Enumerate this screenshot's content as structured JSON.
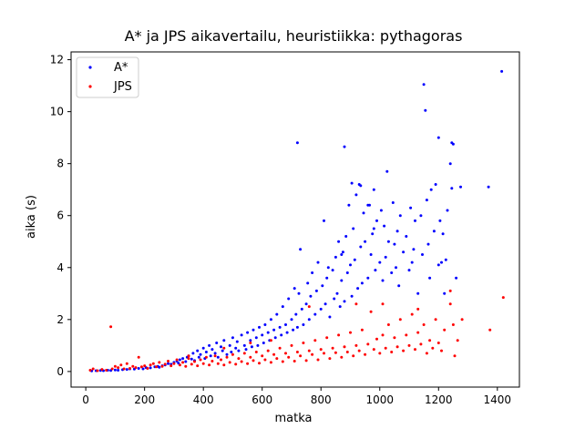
{
  "chart_data": {
    "type": "scatter",
    "title": "A* ja JPS aikavertailu, heuristiikka: pythagoras",
    "xlabel": "matka",
    "ylabel": "aika (s)",
    "xlim": [
      -50,
      1475
    ],
    "ylim": [
      -0.6,
      12.3
    ],
    "xticks": [
      0,
      200,
      400,
      600,
      800,
      1000,
      1200,
      1400
    ],
    "yticks": [
      0,
      2,
      4,
      6,
      8,
      10,
      12
    ],
    "grid": false,
    "legend_position": "upper-left",
    "series": [
      {
        "name": "A*",
        "color": "#0000ff",
        "points": [
          [
            20,
            0.02
          ],
          [
            35,
            0.03
          ],
          [
            50,
            0.04
          ],
          [
            60,
            0.03
          ],
          [
            75,
            0.05
          ],
          [
            85,
            0.04
          ],
          [
            100,
            0.06
          ],
          [
            110,
            0.05
          ],
          [
            125,
            0.07
          ],
          [
            140,
            0.08
          ],
          [
            150,
            0.1
          ],
          [
            165,
            0.09
          ],
          [
            180,
            0.12
          ],
          [
            195,
            0.1
          ],
          [
            205,
            0.15
          ],
          [
            220,
            0.14
          ],
          [
            235,
            0.18
          ],
          [
            245,
            0.2
          ],
          [
            250,
            0.16
          ],
          [
            260,
            0.22
          ],
          [
            270,
            0.25
          ],
          [
            280,
            0.3
          ],
          [
            290,
            0.28
          ],
          [
            300,
            0.35
          ],
          [
            310,
            0.4
          ],
          [
            315,
            0.32
          ],
          [
            320,
            0.45
          ],
          [
            330,
            0.5
          ],
          [
            340,
            0.38
          ],
          [
            345,
            0.55
          ],
          [
            350,
            0.6
          ],
          [
            360,
            0.48
          ],
          [
            365,
            0.7
          ],
          [
            370,
            0.42
          ],
          [
            380,
            0.8
          ],
          [
            385,
            0.55
          ],
          [
            390,
            0.65
          ],
          [
            400,
            0.9
          ],
          [
            405,
            0.5
          ],
          [
            410,
            0.75
          ],
          [
            420,
            1.0
          ],
          [
            425,
            0.6
          ],
          [
            430,
            0.85
          ],
          [
            440,
            0.7
          ],
          [
            445,
            1.1
          ],
          [
            450,
            0.55
          ],
          [
            460,
            0.95
          ],
          [
            465,
            0.8
          ],
          [
            470,
            1.2
          ],
          [
            480,
            0.65
          ],
          [
            490,
            1.0
          ],
          [
            495,
            0.75
          ],
          [
            500,
            1.3
          ],
          [
            510,
            0.9
          ],
          [
            515,
            1.15
          ],
          [
            520,
            0.8
          ],
          [
            530,
            1.4
          ],
          [
            540,
            1.0
          ],
          [
            545,
            0.85
          ],
          [
            550,
            1.5
          ],
          [
            560,
            1.2
          ],
          [
            565,
            0.95
          ],
          [
            570,
            1.6
          ],
          [
            580,
            1.3
          ],
          [
            585,
            1.0
          ],
          [
            590,
            1.7
          ],
          [
            600,
            1.4
          ],
          [
            605,
            1.1
          ],
          [
            610,
            1.8
          ],
          [
            620,
            1.5
          ],
          [
            625,
            1.2
          ],
          [
            630,
            2.0
          ],
          [
            640,
            1.6
          ],
          [
            645,
            1.3
          ],
          [
            650,
            2.2
          ],
          [
            660,
            1.7
          ],
          [
            665,
            1.4
          ],
          [
            670,
            2.5
          ],
          [
            680,
            1.8
          ],
          [
            685,
            1.5
          ],
          [
            690,
            2.8
          ],
          [
            700,
            2.0
          ],
          [
            705,
            1.6
          ],
          [
            710,
            3.2
          ],
          [
            715,
            2.2
          ],
          [
            720,
            1.7
          ],
          [
            725,
            3.0
          ],
          [
            730,
            4.7
          ],
          [
            735,
            2.4
          ],
          [
            740,
            1.8
          ],
          [
            750,
            2.6
          ],
          [
            755,
            3.4
          ],
          [
            760,
            2.0
          ],
          [
            765,
            2.9
          ],
          [
            770,
            3.8
          ],
          [
            780,
            2.2
          ],
          [
            785,
            3.1
          ],
          [
            790,
            4.2
          ],
          [
            800,
            2.4
          ],
          [
            805,
            3.3
          ],
          [
            810,
            5.8
          ],
          [
            815,
            2.6
          ],
          [
            820,
            3.6
          ],
          [
            825,
            4.0
          ],
          [
            830,
            2.1
          ],
          [
            840,
            3.9
          ],
          [
            845,
            2.8
          ],
          [
            850,
            4.4
          ],
          [
            855,
            3.0
          ],
          [
            860,
            5.0
          ],
          [
            865,
            2.5
          ],
          [
            870,
            3.5
          ],
          [
            875,
            4.6
          ],
          [
            880,
            2.7
          ],
          [
            885,
            5.2
          ],
          [
            890,
            3.8
          ],
          [
            895,
            6.4
          ],
          [
            900,
            4.1
          ],
          [
            905,
            2.9
          ],
          [
            910,
            5.5
          ],
          [
            915,
            4.3
          ],
          [
            920,
            6.8
          ],
          [
            925,
            3.2
          ],
          [
            930,
            7.2
          ],
          [
            935,
            4.8
          ],
          [
            940,
            3.4
          ],
          [
            945,
            6.1
          ],
          [
            950,
            5.0
          ],
          [
            960,
            3.6
          ],
          [
            965,
            6.4
          ],
          [
            970,
            4.5
          ],
          [
            975,
            5.3
          ],
          [
            980,
            7.0
          ],
          [
            985,
            3.9
          ],
          [
            990,
            5.8
          ],
          [
            1000,
            4.2
          ],
          [
            1005,
            6.2
          ],
          [
            1010,
            3.5
          ],
          [
            1015,
            5.6
          ],
          [
            1020,
            4.4
          ],
          [
            1025,
            7.7
          ],
          [
            1030,
            5.0
          ],
          [
            1040,
            3.8
          ],
          [
            1045,
            6.5
          ],
          [
            1050,
            4.9
          ],
          [
            1060,
            5.4
          ],
          [
            1065,
            3.3
          ],
          [
            1070,
            6.0
          ],
          [
            1080,
            4.6
          ],
          [
            1090,
            5.2
          ],
          [
            1100,
            3.9
          ],
          [
            1105,
            6.3
          ],
          [
            1110,
            4.2
          ],
          [
            1120,
            5.8
          ],
          [
            1130,
            3.0
          ],
          [
            1140,
            6.0
          ],
          [
            1145,
            4.5
          ],
          [
            1150,
            11.05
          ],
          [
            1155,
            10.05
          ],
          [
            1160,
            6.6
          ],
          [
            1165,
            4.9
          ],
          [
            1170,
            3.6
          ],
          [
            1175,
            7.0
          ],
          [
            1185,
            5.4
          ],
          [
            1190,
            7.2
          ],
          [
            1200,
            9.0
          ],
          [
            1205,
            5.8
          ],
          [
            1210,
            4.2
          ],
          [
            1220,
            3.0
          ],
          [
            1230,
            6.2
          ],
          [
            1240,
            8.0
          ],
          [
            1245,
            8.8
          ],
          [
            1250,
            8.75
          ],
          [
            1260,
            3.6
          ],
          [
            1275,
            7.1
          ],
          [
            1370,
            7.1
          ],
          [
            1415,
            11.55
          ],
          [
            720,
            8.8
          ],
          [
            880,
            8.65
          ],
          [
            905,
            7.25
          ],
          [
            935,
            7.15
          ],
          [
            960,
            6.4
          ],
          [
            1115,
            4.7
          ],
          [
            1200,
            4.1
          ],
          [
            1215,
            5.3
          ],
          [
            1225,
            4.3
          ],
          [
            1245,
            7.05
          ],
          [
            980,
            5.5
          ],
          [
            1055,
            4.0
          ],
          [
            870,
            4.5
          ]
        ]
      },
      {
        "name": "JPS",
        "color": "#ff0000",
        "points": [
          [
            15,
            0.05
          ],
          [
            25,
            0.1
          ],
          [
            40,
            0.03
          ],
          [
            55,
            0.08
          ],
          [
            70,
            0.05
          ],
          [
            85,
            1.72
          ],
          [
            90,
            0.1
          ],
          [
            100,
            0.2
          ],
          [
            110,
            0.15
          ],
          [
            120,
            0.25
          ],
          [
            130,
            0.1
          ],
          [
            140,
            0.3
          ],
          [
            150,
            0.12
          ],
          [
            160,
            0.2
          ],
          [
            170,
            0.15
          ],
          [
            180,
            0.55
          ],
          [
            190,
            0.18
          ],
          [
            200,
            0.22
          ],
          [
            210,
            0.12
          ],
          [
            220,
            0.25
          ],
          [
            230,
            0.3
          ],
          [
            240,
            0.18
          ],
          [
            250,
            0.35
          ],
          [
            260,
            0.2
          ],
          [
            270,
            0.28
          ],
          [
            280,
            0.4
          ],
          [
            290,
            0.22
          ],
          [
            300,
            0.3
          ],
          [
            310,
            0.45
          ],
          [
            320,
            0.25
          ],
          [
            330,
            0.35
          ],
          [
            340,
            0.2
          ],
          [
            350,
            0.5
          ],
          [
            360,
            0.28
          ],
          [
            370,
            0.38
          ],
          [
            380,
            0.22
          ],
          [
            390,
            0.45
          ],
          [
            400,
            0.3
          ],
          [
            410,
            0.55
          ],
          [
            420,
            0.25
          ],
          [
            430,
            0.4
          ],
          [
            440,
            0.6
          ],
          [
            450,
            0.3
          ],
          [
            460,
            0.45
          ],
          [
            470,
            0.25
          ],
          [
            480,
            0.55
          ],
          [
            490,
            0.35
          ],
          [
            500,
            0.65
          ],
          [
            510,
            0.28
          ],
          [
            520,
            0.5
          ],
          [
            530,
            0.38
          ],
          [
            540,
            0.7
          ],
          [
            550,
            0.3
          ],
          [
            560,
            0.55
          ],
          [
            570,
            0.42
          ],
          [
            580,
            0.75
          ],
          [
            590,
            0.32
          ],
          [
            600,
            0.6
          ],
          [
            610,
            0.45
          ],
          [
            620,
            0.8
          ],
          [
            630,
            0.35
          ],
          [
            640,
            0.65
          ],
          [
            650,
            0.5
          ],
          [
            660,
            0.9
          ],
          [
            670,
            0.38
          ],
          [
            680,
            0.7
          ],
          [
            690,
            0.55
          ],
          [
            700,
            1.0
          ],
          [
            710,
            0.4
          ],
          [
            720,
            0.75
          ],
          [
            730,
            0.6
          ],
          [
            740,
            1.1
          ],
          [
            750,
            0.42
          ],
          [
            760,
            0.8
          ],
          [
            770,
            0.65
          ],
          [
            780,
            1.2
          ],
          [
            790,
            0.45
          ],
          [
            800,
            0.85
          ],
          [
            810,
            0.7
          ],
          [
            820,
            1.3
          ],
          [
            830,
            0.5
          ],
          [
            840,
            0.9
          ],
          [
            850,
            0.72
          ],
          [
            860,
            1.4
          ],
          [
            870,
            0.55
          ],
          [
            880,
            0.95
          ],
          [
            890,
            0.75
          ],
          [
            900,
            1.5
          ],
          [
            910,
            0.6
          ],
          [
            920,
            1.0
          ],
          [
            930,
            0.8
          ],
          [
            940,
            1.6
          ],
          [
            950,
            0.65
          ],
          [
            960,
            1.05
          ],
          [
            970,
            2.3
          ],
          [
            980,
            0.85
          ],
          [
            990,
            1.25
          ],
          [
            1000,
            0.7
          ],
          [
            1010,
            1.4
          ],
          [
            1020,
            0.9
          ],
          [
            1030,
            1.8
          ],
          [
            1040,
            0.75
          ],
          [
            1050,
            1.3
          ],
          [
            1060,
            0.95
          ],
          [
            1070,
            2.0
          ],
          [
            1080,
            0.8
          ],
          [
            1090,
            1.4
          ],
          [
            1100,
            1.0
          ],
          [
            1110,
            2.2
          ],
          [
            1120,
            0.85
          ],
          [
            1130,
            1.5
          ],
          [
            1140,
            1.05
          ],
          [
            1150,
            1.8
          ],
          [
            1160,
            0.7
          ],
          [
            1170,
            1.2
          ],
          [
            1180,
            0.9
          ],
          [
            1190,
            2.0
          ],
          [
            1200,
            1.1
          ],
          [
            1210,
            0.8
          ],
          [
            1220,
            1.6
          ],
          [
            1240,
            3.1
          ],
          [
            1250,
            1.8
          ],
          [
            1255,
            0.6
          ],
          [
            1265,
            1.2
          ],
          [
            1280,
            2.0
          ],
          [
            1375,
            1.6
          ],
          [
            1420,
            2.85
          ],
          [
            760,
            2.5
          ],
          [
            920,
            2.6
          ],
          [
            1010,
            2.6
          ],
          [
            1130,
            2.4
          ],
          [
            1240,
            2.6
          ],
          [
            560,
            1.1
          ],
          [
            630,
            1.2
          ],
          [
            350,
            0.6
          ],
          [
            470,
            0.9
          ]
        ]
      }
    ]
  }
}
